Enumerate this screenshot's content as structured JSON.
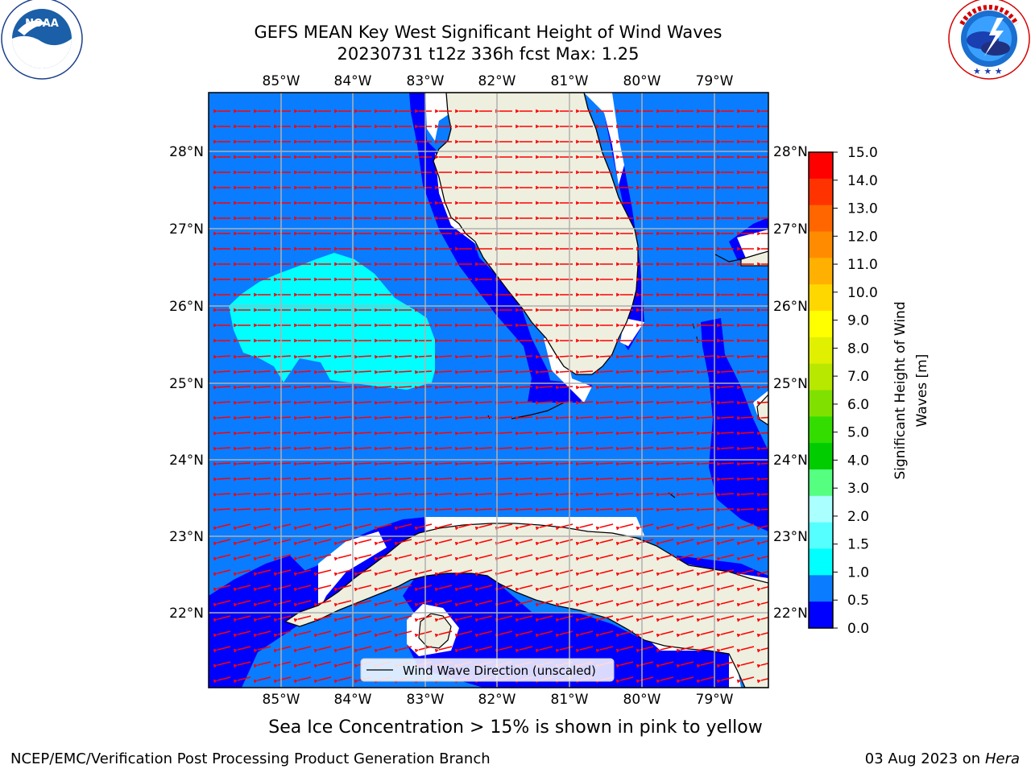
{
  "title": {
    "line1": "GEFS MEAN Key West Significant Height of Wind Waves",
    "line2": "20230731 t12z 336h fcst   Max: 1.25"
  },
  "map": {
    "lon_labels": [
      "85°W",
      "84°W",
      "83°W",
      "82°W",
      "81°W",
      "80°W",
      "79°W"
    ],
    "lat_labels": [
      "28°N",
      "27°N",
      "26°N",
      "25°N",
      "24°N",
      "23°N",
      "22°N"
    ],
    "legend_label": "Wind Wave Direction (unscaled)",
    "colors": {
      "ocean_low": "#0000ff",
      "ocean_mid": "#0a7cff",
      "ocean_high": "#00ffff",
      "land": "#efefdf",
      "arrow": "#ff0000",
      "grid": "#b0b0b0"
    },
    "wind_direction": "westward"
  },
  "colorbar": {
    "label": "Significant Height of Wind Waves [m]",
    "ticks": [
      "15.0",
      "14.0",
      "13.0",
      "12.0",
      "11.0",
      "10.0",
      "9.0",
      "8.0",
      "7.0",
      "6.0",
      "5.0",
      "4.0",
      "3.0",
      "2.0",
      "1.5",
      "1.0",
      "0.5",
      "0.0"
    ],
    "colors": [
      "#ff0000",
      "#ff3300",
      "#ff6600",
      "#ff8c00",
      "#ffb000",
      "#ffd700",
      "#ffff00",
      "#e0f000",
      "#b8e800",
      "#80e000",
      "#33dd00",
      "#00cc00",
      "#55ff80",
      "#aaffff",
      "#55ffff",
      "#00ffff",
      "#0a7cff",
      "#0000ff"
    ]
  },
  "logos": {
    "noaa_text": "NOAA",
    "noaa_ring": "NATIONAL OCEANIC AND ATMOSPHERIC ADMINISTRATION · U.S. DEPARTMENT OF COMMERCE",
    "nws_ring": "NATIONAL WEATHER SERVICE"
  },
  "ice_note": "Sea Ice Concentration > 15% is shown in pink to yellow",
  "footer": {
    "credit_left": "NCEP/EMC/Verification Post Processing Product Generation Branch",
    "date": "03 Aug 2023 on",
    "machine": "Hera"
  }
}
